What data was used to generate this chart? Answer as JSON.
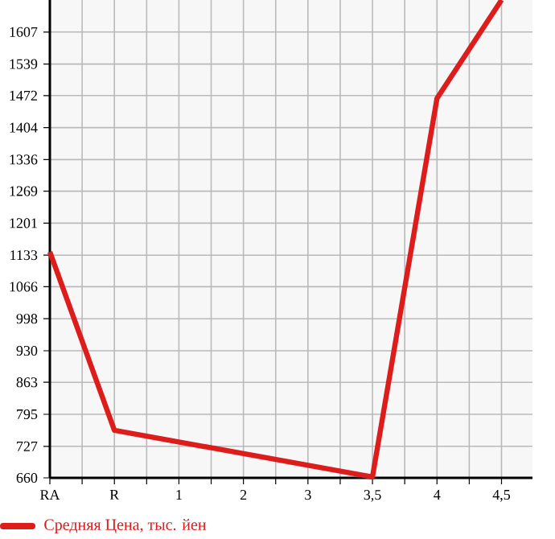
{
  "chart_data": {
    "type": "line",
    "categories": [
      "RA",
      "R",
      "1",
      "2",
      "3",
      "3,5",
      "4",
      "4,5"
    ],
    "series": [
      {
        "name": "Средняя Цена, тыс. йен",
        "color": "#dd1c1c",
        "values": [
          1140,
          761,
          null,
          null,
          null,
          662,
          1466,
          1675
        ]
      }
    ],
    "ylim": [
      660,
      1675
    ],
    "yticks": [
      660,
      727,
      795,
      863,
      930,
      998,
      1066,
      1133,
      1201,
      1269,
      1336,
      1404,
      1472,
      1539,
      1607
    ],
    "grid": true,
    "legend": "bottom",
    "marker": "none",
    "line_style": "solid"
  }
}
